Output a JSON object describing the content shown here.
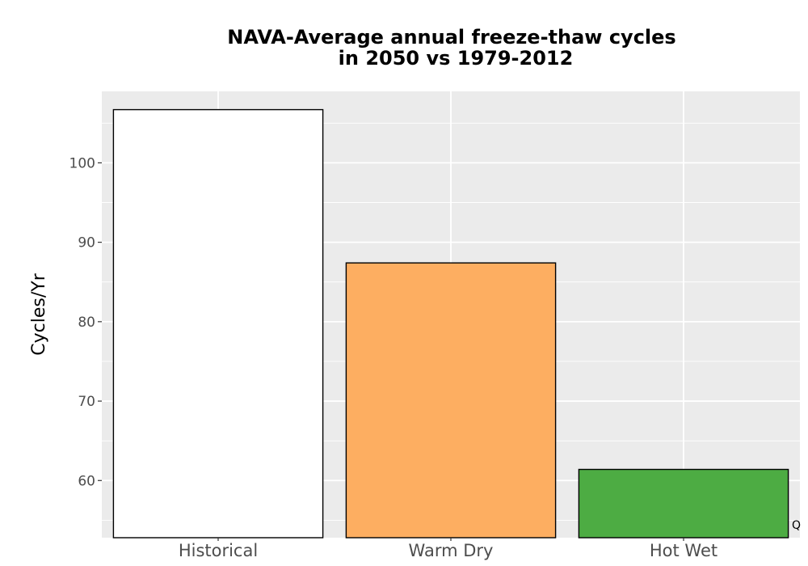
{
  "chart_data": {
    "type": "bar",
    "title_lines": [
      "NAVA-Average annual freeze-thaw cycles",
      "in 2050 vs 1979-2012"
    ],
    "xlabel": "",
    "ylabel": "Cycles/Yr",
    "categories": [
      "Historical",
      "Warm Dry",
      "Hot Wet"
    ],
    "values": [
      106.7,
      87.4,
      61.4
    ],
    "colors": [
      "#ffffff",
      "#fdae61",
      "#4dac43"
    ],
    "bar_outline": "#000000",
    "ylim": [
      52.8,
      109
    ],
    "yticks": [
      60,
      70,
      80,
      90,
      100
    ],
    "grid": true,
    "panel_background": "#ebebeb",
    "corner_glyph": "Q"
  }
}
